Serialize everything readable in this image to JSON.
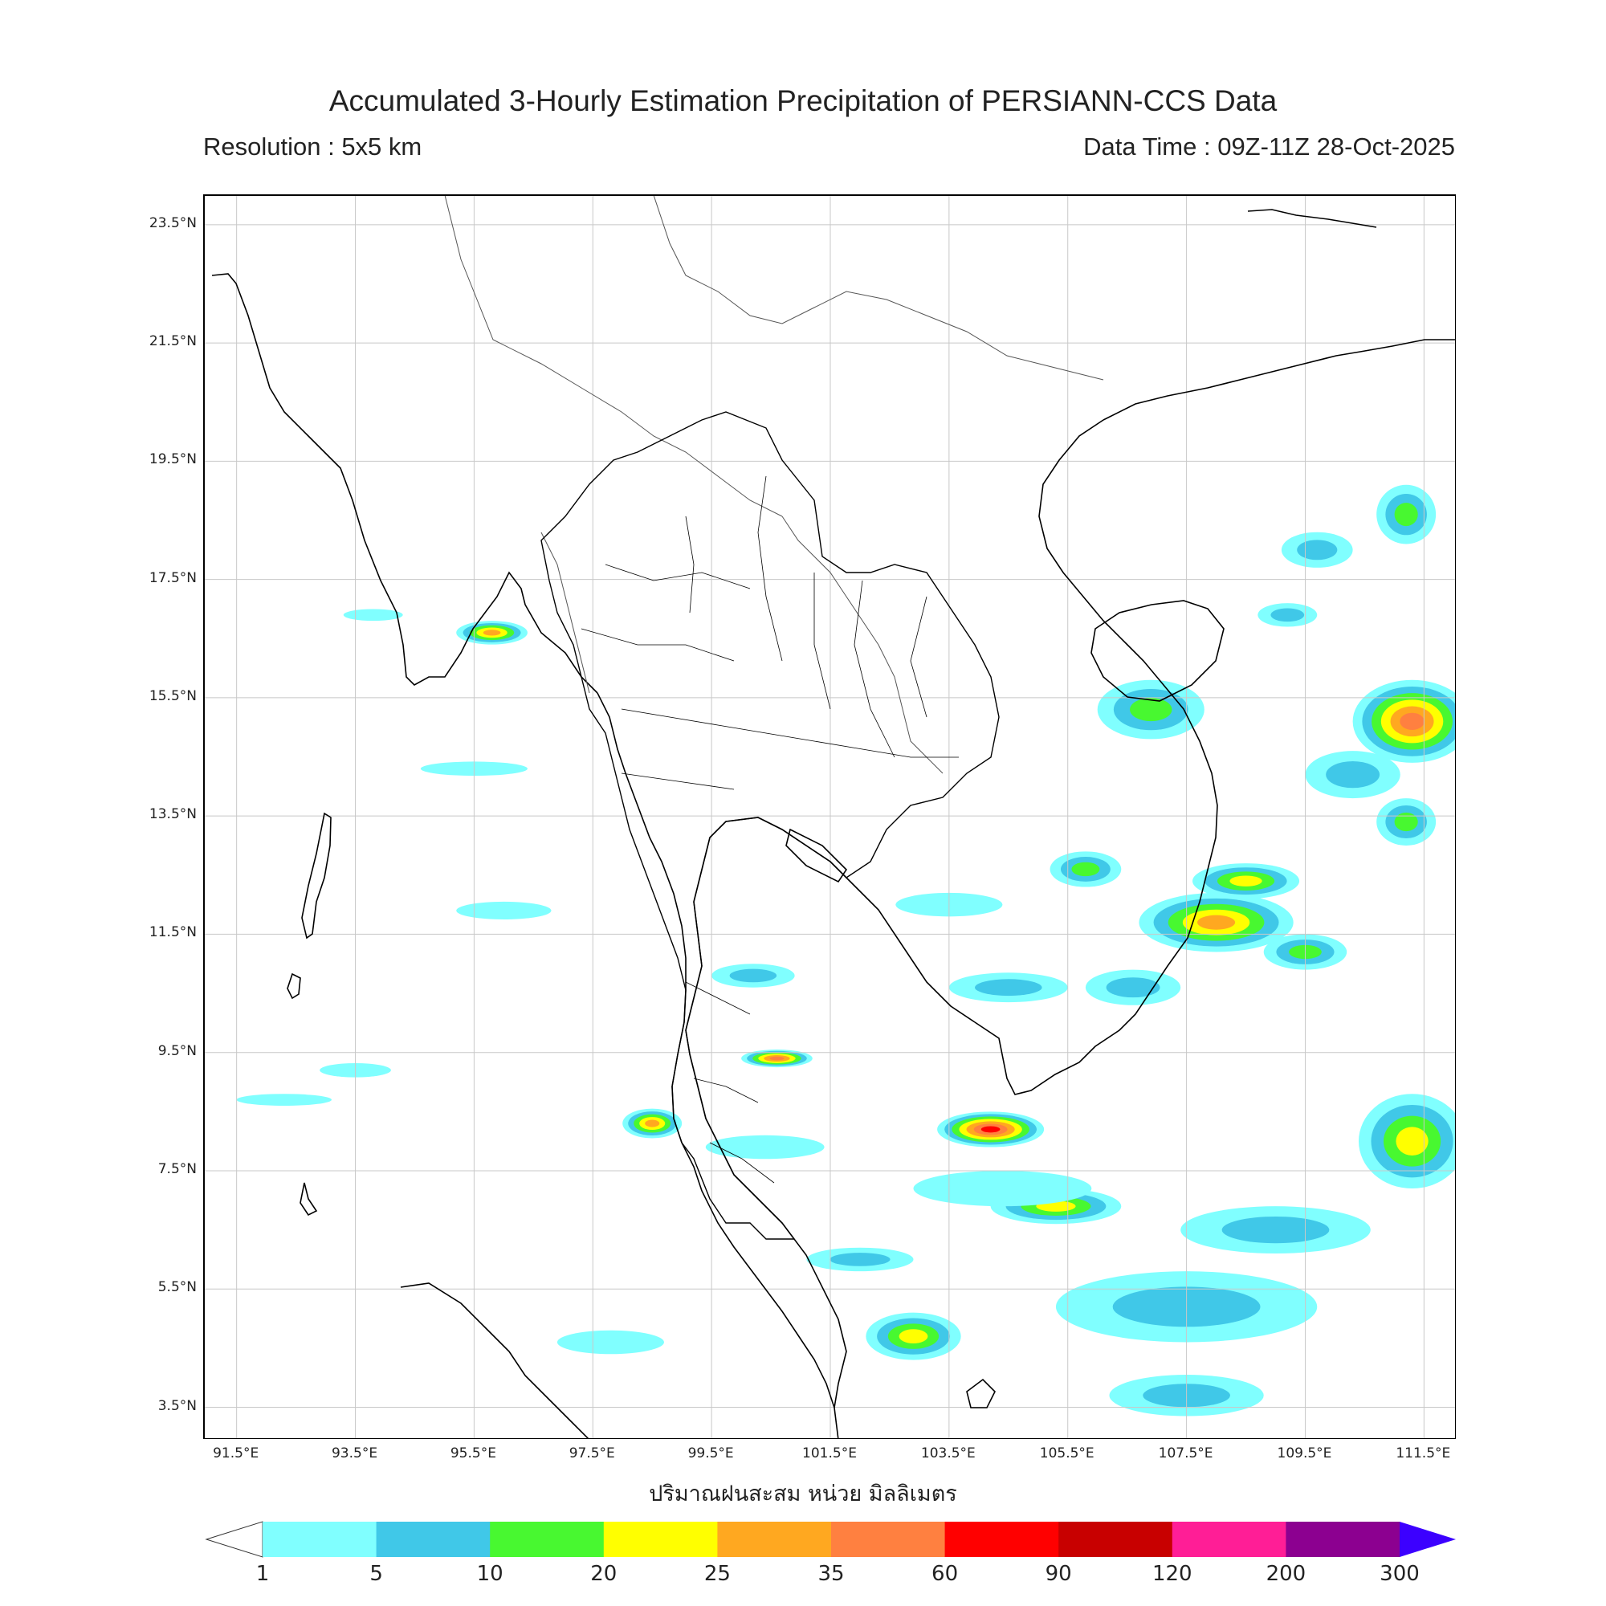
{
  "header": {
    "title": "Accumulated 3-Hourly Estimation Precipitation of PERSIANN-CCS Data",
    "resolution": "Resolution : 5x5 km",
    "data_time": "Data Time : 09Z-11Z 28-Oct-2025"
  },
  "axes": {
    "lat_labels": [
      "23.5°N",
      "21.5°N",
      "19.5°N",
      "17.5°N",
      "15.5°N",
      "13.5°N",
      "11.5°N",
      "9.5°N",
      "7.5°N",
      "5.5°N",
      "3.5°N"
    ],
    "lon_labels": [
      "91.5°E",
      "93.5°E",
      "95.5°E",
      "97.5°E",
      "99.5°E",
      "101.5°E",
      "103.5°E",
      "105.5°E",
      "107.5°E",
      "109.5°E",
      "111.5°E"
    ],
    "lat_values": [
      23.5,
      21.5,
      19.5,
      17.5,
      15.5,
      13.5,
      11.5,
      9.5,
      7.5,
      5.5,
      3.5
    ],
    "lon_values": [
      91.5,
      93.5,
      95.5,
      97.5,
      99.5,
      101.5,
      103.5,
      105.5,
      107.5,
      109.5,
      111.5
    ],
    "lat_range": [
      2.95,
      24.0
    ],
    "lon_range": [
      90.95,
      112.05
    ]
  },
  "colorbar": {
    "units_label": "ปริมาณฝนสะสม หน่วย มิลลิเมตร",
    "ticks": [
      "1",
      "5",
      "10",
      "20",
      "25",
      "35",
      "60",
      "90",
      "120",
      "200",
      "300"
    ],
    "colors": [
      "#80ffff",
      "#40c8e8",
      "#48f830",
      "#ffff00",
      "#ffa820",
      "#ff8040",
      "#ff0000",
      "#c80000",
      "#ff1e96",
      "#8c0090"
    ],
    "extend_low_color": "#ffffff",
    "extend_high_color": "#3c00ff"
  },
  "rain_areas": [
    {
      "lon": 106.9,
      "lat": 15.3,
      "rx": 0.9,
      "ry": 0.5,
      "level": 2
    },
    {
      "lon": 111.3,
      "lat": 15.1,
      "rx": 1.0,
      "ry": 0.7,
      "level": 5
    },
    {
      "lon": 110.3,
      "lat": 14.2,
      "rx": 0.8,
      "ry": 0.4,
      "level": 1
    },
    {
      "lon": 111.2,
      "lat": 13.4,
      "rx": 0.5,
      "ry": 0.4,
      "level": 2
    },
    {
      "lon": 108.0,
      "lat": 11.7,
      "rx": 1.3,
      "ry": 0.5,
      "level": 4
    },
    {
      "lon": 108.5,
      "lat": 12.4,
      "rx": 0.9,
      "ry": 0.3,
      "level": 3
    },
    {
      "lon": 105.8,
      "lat": 12.6,
      "rx": 0.6,
      "ry": 0.3,
      "level": 2
    },
    {
      "lon": 109.5,
      "lat": 11.2,
      "rx": 0.7,
      "ry": 0.3,
      "level": 2
    },
    {
      "lon": 106.6,
      "lat": 10.6,
      "rx": 0.8,
      "ry": 0.3,
      "level": 1
    },
    {
      "lon": 104.2,
      "lat": 8.2,
      "rx": 0.9,
      "ry": 0.3,
      "level": 6
    },
    {
      "lon": 105.3,
      "lat": 6.9,
      "rx": 1.1,
      "ry": 0.3,
      "level": 3
    },
    {
      "lon": 102.9,
      "lat": 4.7,
      "rx": 0.8,
      "ry": 0.4,
      "level": 3
    },
    {
      "lon": 100.6,
      "lat": 9.4,
      "rx": 0.6,
      "ry": 0.15,
      "level": 5
    },
    {
      "lon": 98.5,
      "lat": 8.3,
      "rx": 0.5,
      "ry": 0.25,
      "level": 4
    },
    {
      "lon": 111.3,
      "lat": 8.0,
      "rx": 0.9,
      "ry": 0.8,
      "level": 3
    },
    {
      "lon": 109.2,
      "lat": 16.9,
      "rx": 0.5,
      "ry": 0.2,
      "level": 1
    },
    {
      "lon": 109.7,
      "lat": 18.0,
      "rx": 0.6,
      "ry": 0.3,
      "level": 1
    },
    {
      "lon": 111.2,
      "lat": 18.6,
      "rx": 0.5,
      "ry": 0.5,
      "level": 2
    },
    {
      "lon": 107.5,
      "lat": 5.2,
      "rx": 2.2,
      "ry": 0.6,
      "level": 1
    },
    {
      "lon": 109.0,
      "lat": 6.5,
      "rx": 1.6,
      "ry": 0.4,
      "level": 1
    },
    {
      "lon": 107.5,
      "lat": 3.7,
      "rx": 1.3,
      "ry": 0.35,
      "level": 1
    },
    {
      "lon": 104.4,
      "lat": 7.2,
      "rx": 1.5,
      "ry": 0.3,
      "level": 0
    },
    {
      "lon": 95.8,
      "lat": 16.6,
      "rx": 0.6,
      "ry": 0.2,
      "level": 4
    },
    {
      "lon": 93.8,
      "lat": 16.9,
      "rx": 0.5,
      "ry": 0.1,
      "level": 0
    },
    {
      "lon": 95.5,
      "lat": 14.3,
      "rx": 0.9,
      "ry": 0.12,
      "level": 0
    },
    {
      "lon": 96.0,
      "lat": 11.9,
      "rx": 0.8,
      "ry": 0.15,
      "level": 0
    },
    {
      "lon": 93.5,
      "lat": 9.2,
      "rx": 0.6,
      "ry": 0.12,
      "level": 0
    },
    {
      "lon": 92.3,
      "lat": 8.7,
      "rx": 0.8,
      "ry": 0.1,
      "level": 0
    },
    {
      "lon": 100.2,
      "lat": 10.8,
      "rx": 0.7,
      "ry": 0.2,
      "level": 1
    },
    {
      "lon": 100.4,
      "lat": 7.9,
      "rx": 1.0,
      "ry": 0.2,
      "level": 0
    },
    {
      "lon": 102.0,
      "lat": 6.0,
      "rx": 0.9,
      "ry": 0.2,
      "level": 1
    },
    {
      "lon": 104.5,
      "lat": 10.6,
      "rx": 1.0,
      "ry": 0.25,
      "level": 1
    },
    {
      "lon": 103.5,
      "lat": 12.0,
      "rx": 0.9,
      "ry": 0.2,
      "level": 0
    },
    {
      "lon": 97.8,
      "lat": 4.6,
      "rx": 0.9,
      "ry": 0.2,
      "level": 0
    }
  ]
}
